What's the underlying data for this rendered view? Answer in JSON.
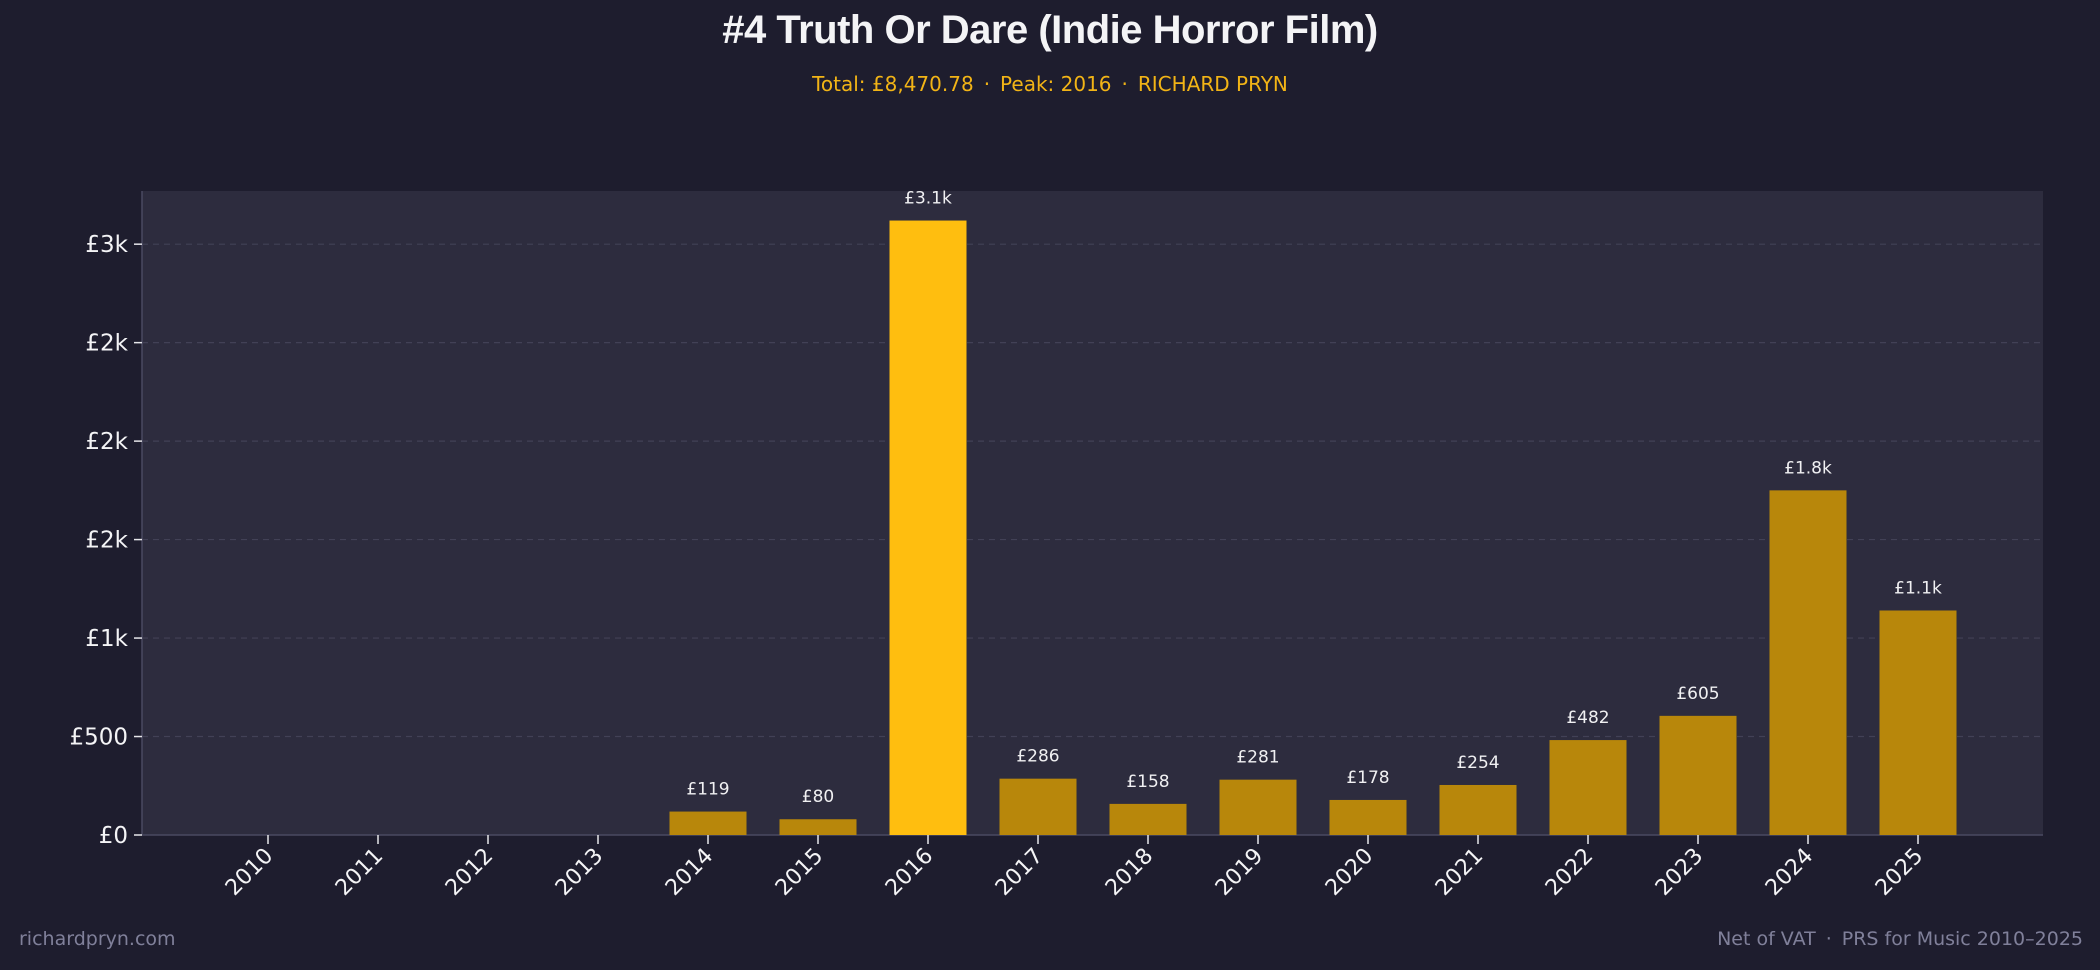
{
  "header": {
    "title": "#4  Truth Or Dare (Indie Horror Film)",
    "total": "Total: £8,470.78",
    "peak": "Peak: 2016",
    "artist": "RICHARD PRYN",
    "separator": "·"
  },
  "footer": {
    "site": "richardpryn.com",
    "vat_note": "Net of VAT",
    "source": "PRS for Music 2010–2025",
    "separator": "·"
  },
  "colors": {
    "background": "#1e1d2e",
    "plot_background": "#2d2c3e",
    "bar": "#b8870b",
    "bar_peak": "#ffbe0f",
    "accent": "#f2b416",
    "grid": "#424156",
    "text": "#f4f4f6",
    "muted": "#80809a"
  },
  "chart_data": {
    "type": "bar",
    "title": "#4  Truth Or Dare (Indie Horror Film)",
    "xlabel": "",
    "ylabel": "",
    "categories": [
      "2010",
      "2011",
      "2012",
      "2013",
      "2014",
      "2015",
      "2016",
      "2017",
      "2018",
      "2019",
      "2020",
      "2021",
      "2022",
      "2023",
      "2024",
      "2025"
    ],
    "values": [
      0,
      0,
      0,
      0,
      119,
      80,
      3120,
      286,
      158,
      281,
      178,
      254,
      482,
      605,
      1750,
      1140
    ],
    "data_labels": [
      "",
      "",
      "",
      "",
      "£119",
      "£80",
      "£3.1k",
      "£286",
      "£158",
      "£281",
      "£178",
      "£254",
      "£482",
      "£605",
      "£1.8k",
      "£1.1k"
    ],
    "peak_category": "2016",
    "ylim": [
      0,
      3270
    ],
    "y_ticks": [
      0,
      500,
      1000,
      1500,
      2000,
      2500,
      3000
    ],
    "y_tick_labels": [
      "£0",
      "£500",
      "£1k",
      "£2k",
      "£2k",
      "£2k",
      "£3k"
    ],
    "grid": true,
    "grid_axis": "y",
    "legend": "none"
  }
}
